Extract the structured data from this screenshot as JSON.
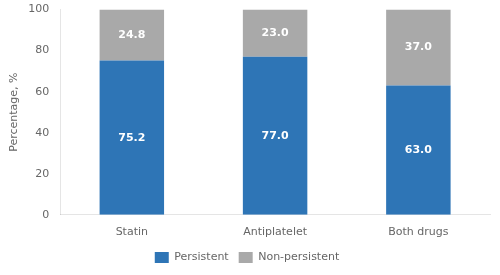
{
  "chart_data": {
    "type": "bar",
    "stacked": true,
    "categories": [
      "Statin",
      "Antiplatelet",
      "Both drugs"
    ],
    "series": [
      {
        "name": "Persistent",
        "color": "#2E75B6",
        "values": [
          75.2,
          77.0,
          63.0
        ],
        "value_labels": [
          "75.2",
          "77.0",
          "63.0"
        ]
      },
      {
        "name": "Non-persistent",
        "color": "#A9A9A9",
        "values": [
          24.8,
          23.0,
          37.0
        ],
        "value_labels": [
          "24.8",
          "23.0",
          "37.0"
        ]
      }
    ],
    "ylabel": "Percentage, %",
    "ylim": [
      0,
      100
    ],
    "yticks": [
      0,
      20,
      40,
      60,
      80,
      100
    ],
    "grid": false,
    "legend": "bottom",
    "data_labels": true
  }
}
